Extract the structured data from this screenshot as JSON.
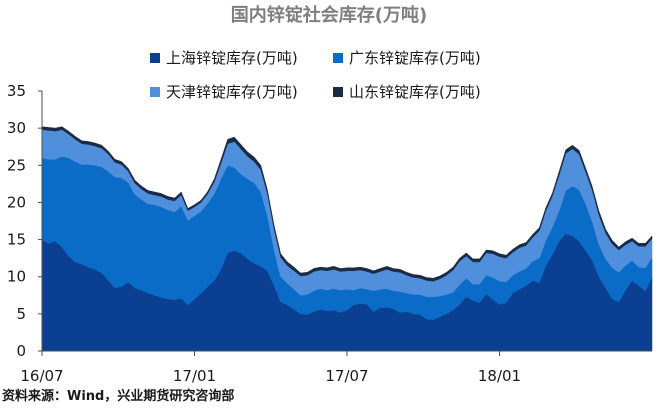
{
  "chart_data": {
    "type": "area",
    "stacked": true,
    "title": "国内锌锭社会库存(万吨)",
    "source": "资料来源：Wind，兴业期货研究咨询部",
    "ylim": [
      0,
      35
    ],
    "yticks": [
      0,
      5,
      10,
      15,
      20,
      25,
      30,
      35
    ],
    "xlim": [
      0,
      92
    ],
    "xticks": [
      {
        "pos": 0,
        "label": "16/07"
      },
      {
        "pos": 23,
        "label": "17/01"
      },
      {
        "pos": 46,
        "label": "17/07"
      },
      {
        "pos": 69,
        "label": "18/01"
      }
    ],
    "grid": false,
    "legend_position": "top",
    "x": [
      0,
      1,
      2,
      3,
      4,
      5,
      6,
      7,
      8,
      9,
      10,
      11,
      12,
      13,
      14,
      15,
      16,
      17,
      18,
      19,
      20,
      21,
      22,
      23,
      24,
      25,
      26,
      27,
      28,
      29,
      30,
      31,
      32,
      33,
      34,
      35,
      36,
      37,
      38,
      39,
      40,
      41,
      42,
      43,
      44,
      45,
      46,
      47,
      48,
      49,
      50,
      51,
      52,
      53,
      54,
      55,
      56,
      57,
      58,
      59,
      60,
      61,
      62,
      63,
      64,
      65,
      66,
      67,
      68,
      69,
      70,
      71,
      72,
      73,
      74,
      75,
      76,
      77,
      78,
      79,
      80,
      81,
      82,
      83,
      84,
      85,
      86,
      87,
      88,
      89,
      90,
      91,
      92
    ],
    "series": [
      {
        "name": "上海锌锭库存(万吨)",
        "color": "#0b3f91",
        "values": [
          15.0,
          14.5,
          14.8,
          14.0,
          12.8,
          12.0,
          11.7,
          11.3,
          11.0,
          10.5,
          9.5,
          8.5,
          8.7,
          9.3,
          8.5,
          8.2,
          7.8,
          7.5,
          7.2,
          7.0,
          6.9,
          7.1,
          6.2,
          7.0,
          7.8,
          8.7,
          9.5,
          11.0,
          13.2,
          13.5,
          13.2,
          12.4,
          11.8,
          11.4,
          10.8,
          8.8,
          6.6,
          6.2,
          5.6,
          5.0,
          4.9,
          5.3,
          5.6,
          5.4,
          5.5,
          5.2,
          5.5,
          6.2,
          6.4,
          6.3,
          5.3,
          5.8,
          5.9,
          5.7,
          5.2,
          5.3,
          5.0,
          4.9,
          4.3,
          4.2,
          4.6,
          5.0,
          5.5,
          6.3,
          7.3,
          6.8,
          6.5,
          7.7,
          6.9,
          6.3,
          6.5,
          7.8,
          8.3,
          8.8,
          9.5,
          9.2,
          11.5,
          13.0,
          14.8,
          15.8,
          15.5,
          14.8,
          13.5,
          12.2,
          10.0,
          8.5,
          7.0,
          6.6,
          8.2,
          9.5,
          8.8,
          8.1,
          10.0
        ]
      },
      {
        "name": "广东锌锭库存(万吨)",
        "color": "#0a6cc7",
        "values": [
          11.0,
          11.3,
          11.0,
          12.2,
          13.2,
          13.5,
          13.4,
          13.8,
          14.0,
          14.3,
          14.7,
          14.9,
          14.6,
          13.4,
          12.6,
          12.2,
          12.0,
          12.2,
          12.2,
          12.0,
          11.8,
          12.4,
          11.4,
          11.2,
          11.0,
          11.2,
          11.7,
          12.2,
          11.8,
          11.2,
          10.6,
          10.8,
          10.8,
          10.0,
          7.4,
          4.8,
          3.4,
          2.9,
          2.7,
          2.5,
          2.7,
          2.8,
          2.8,
          2.8,
          2.9,
          3.0,
          2.8,
          2.0,
          2.1,
          2.0,
          2.8,
          2.5,
          2.5,
          2.4,
          2.8,
          2.5,
          2.6,
          2.7,
          3.0,
          3.1,
          2.8,
          2.6,
          2.4,
          2.6,
          2.5,
          2.2,
          2.5,
          2.5,
          3.0,
          3.1,
          2.8,
          2.4,
          2.4,
          2.3,
          2.6,
          3.3,
          3.4,
          3.7,
          4.1,
          5.8,
          6.7,
          6.9,
          6.3,
          5.2,
          4.3,
          3.9,
          4.2,
          4.0,
          3.3,
          2.7,
          2.5,
          3.1,
          2.6
        ]
      },
      {
        "name": "天津锌锭库存(万吨)",
        "color": "#4f8fdc",
        "values": [
          3.8,
          3.9,
          3.8,
          3.6,
          3.2,
          3.0,
          2.8,
          2.7,
          2.6,
          2.5,
          2.3,
          2.0,
          1.8,
          1.5,
          1.5,
          1.4,
          1.4,
          1.3,
          1.4,
          1.4,
          1.5,
          1.5,
          1.3,
          1.2,
          1.2,
          1.3,
          1.6,
          2.1,
          2.9,
          3.5,
          3.4,
          3.0,
          2.9,
          3.0,
          3.0,
          2.8,
          2.6,
          2.4,
          2.5,
          2.6,
          2.6,
          2.6,
          2.5,
          2.6,
          2.6,
          2.5,
          2.5,
          2.6,
          2.4,
          2.4,
          2.3,
          2.4,
          2.6,
          2.6,
          2.6,
          2.4,
          2.3,
          2.2,
          2.2,
          2.1,
          2.3,
          2.6,
          3.0,
          3.2,
          3.0,
          3.0,
          3.0,
          3.0,
          3.2,
          3.3,
          3.2,
          3.1,
          3.2,
          3.1,
          3.2,
          3.7,
          4.0,
          4.2,
          4.8,
          5.0,
          5.0,
          4.8,
          4.3,
          4.2,
          4.0,
          3.5,
          3.2,
          3.0,
          2.8,
          2.6,
          2.8,
          2.9,
          2.5
        ]
      },
      {
        "name": "山东锌锭库存(万吨)",
        "color": "#1c2b45",
        "values": [
          0.4,
          0.4,
          0.4,
          0.4,
          0.4,
          0.4,
          0.4,
          0.4,
          0.4,
          0.4,
          0.4,
          0.4,
          0.4,
          0.4,
          0.4,
          0.4,
          0.4,
          0.4,
          0.4,
          0.4,
          0.4,
          0.4,
          0.3,
          0.3,
          0.3,
          0.3,
          0.4,
          0.5,
          0.6,
          0.6,
          0.6,
          0.6,
          0.6,
          0.6,
          0.5,
          0.5,
          0.5,
          0.5,
          0.5,
          0.4,
          0.4,
          0.4,
          0.4,
          0.4,
          0.4,
          0.4,
          0.4,
          0.4,
          0.4,
          0.4,
          0.4,
          0.4,
          0.4,
          0.4,
          0.4,
          0.4,
          0.4,
          0.4,
          0.4,
          0.4,
          0.4,
          0.4,
          0.4,
          0.4,
          0.4,
          0.4,
          0.4,
          0.4,
          0.4,
          0.4,
          0.4,
          0.4,
          0.4,
          0.4,
          0.4,
          0.4,
          0.4,
          0.4,
          0.5,
          0.5,
          0.5,
          0.5,
          0.5,
          0.5,
          0.5,
          0.5,
          0.5,
          0.4,
          0.4,
          0.4,
          0.4,
          0.4,
          0.4
        ]
      }
    ]
  }
}
